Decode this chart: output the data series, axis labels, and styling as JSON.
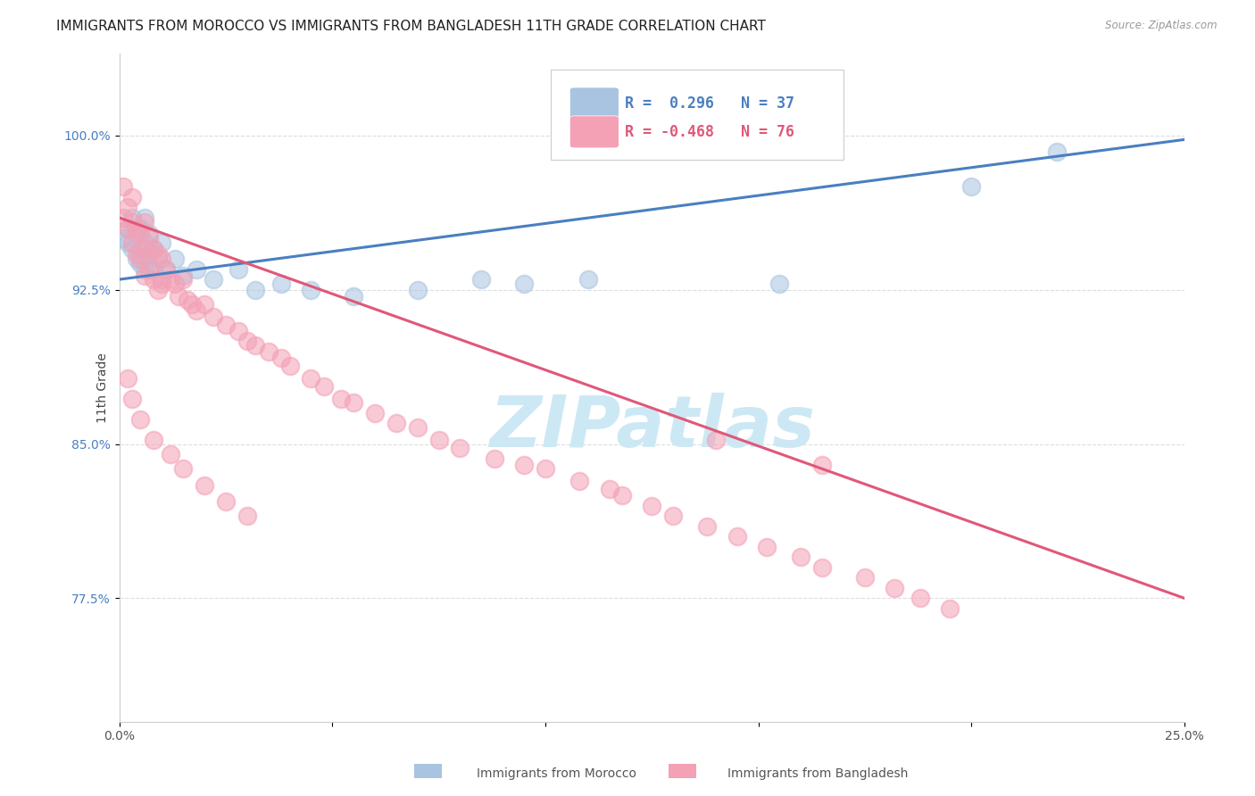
{
  "title": "IMMIGRANTS FROM MOROCCO VS IMMIGRANTS FROM BANGLADESH 11TH GRADE CORRELATION CHART",
  "source": "Source: ZipAtlas.com",
  "ylabel": "11th Grade",
  "ytick_labels": [
    "77.5%",
    "85.0%",
    "92.5%",
    "100.0%"
  ],
  "ytick_values": [
    0.775,
    0.85,
    0.925,
    1.0
  ],
  "xlim": [
    0.0,
    0.25
  ],
  "ylim": [
    0.715,
    1.04
  ],
  "legend_r1": "R =  0.296   N = 37",
  "legend_r2": "R = -0.468   N = 76",
  "morocco_color": "#a8c4e0",
  "bangladesh_color": "#f4a0b5",
  "morocco_line_color": "#4a7fc1",
  "bangladesh_line_color": "#e05878",
  "background_color": "#ffffff",
  "grid_color": "#dddddd",
  "watermark_text": "ZIPatlas",
  "watermark_color": "#cde8f5",
  "morocco_x": [
    0.001,
    0.002,
    0.002,
    0.003,
    0.003,
    0.004,
    0.004,
    0.005,
    0.005,
    0.005,
    0.006,
    0.006,
    0.006,
    0.007,
    0.007,
    0.008,
    0.008,
    0.009,
    0.01,
    0.01,
    0.011,
    0.013,
    0.015,
    0.018,
    0.022,
    0.028,
    0.032,
    0.038,
    0.045,
    0.055,
    0.07,
    0.085,
    0.095,
    0.11,
    0.155,
    0.2,
    0.22
  ],
  "morocco_y": [
    0.95,
    0.955,
    0.948,
    0.96,
    0.945,
    0.952,
    0.94,
    0.955,
    0.945,
    0.938,
    0.96,
    0.948,
    0.935,
    0.952,
    0.942,
    0.945,
    0.935,
    0.94,
    0.948,
    0.93,
    0.935,
    0.94,
    0.932,
    0.935,
    0.93,
    0.935,
    0.925,
    0.928,
    0.925,
    0.922,
    0.925,
    0.93,
    0.928,
    0.93,
    0.928,
    0.975,
    0.992
  ],
  "bangladesh_x": [
    0.001,
    0.001,
    0.002,
    0.002,
    0.003,
    0.003,
    0.003,
    0.004,
    0.004,
    0.005,
    0.005,
    0.006,
    0.006,
    0.006,
    0.007,
    0.007,
    0.008,
    0.008,
    0.009,
    0.009,
    0.01,
    0.01,
    0.011,
    0.012,
    0.013,
    0.014,
    0.015,
    0.016,
    0.017,
    0.018,
    0.02,
    0.022,
    0.025,
    0.028,
    0.03,
    0.032,
    0.035,
    0.038,
    0.04,
    0.045,
    0.048,
    0.052,
    0.055,
    0.06,
    0.065,
    0.07,
    0.075,
    0.08,
    0.088,
    0.095,
    0.1,
    0.108,
    0.115,
    0.118,
    0.125,
    0.13,
    0.138,
    0.145,
    0.152,
    0.16,
    0.165,
    0.175,
    0.182,
    0.188,
    0.195,
    0.002,
    0.003,
    0.005,
    0.008,
    0.012,
    0.015,
    0.02,
    0.025,
    0.03,
    0.14,
    0.165
  ],
  "bangladesh_y": [
    0.96,
    0.975,
    0.965,
    0.955,
    0.97,
    0.958,
    0.948,
    0.955,
    0.942,
    0.952,
    0.94,
    0.958,
    0.945,
    0.932,
    0.95,
    0.935,
    0.945,
    0.93,
    0.942,
    0.925,
    0.94,
    0.928,
    0.935,
    0.93,
    0.928,
    0.922,
    0.93,
    0.92,
    0.918,
    0.915,
    0.918,
    0.912,
    0.908,
    0.905,
    0.9,
    0.898,
    0.895,
    0.892,
    0.888,
    0.882,
    0.878,
    0.872,
    0.87,
    0.865,
    0.86,
    0.858,
    0.852,
    0.848,
    0.843,
    0.84,
    0.838,
    0.832,
    0.828,
    0.825,
    0.82,
    0.815,
    0.81,
    0.805,
    0.8,
    0.795,
    0.79,
    0.785,
    0.78,
    0.775,
    0.77,
    0.882,
    0.872,
    0.862,
    0.852,
    0.845,
    0.838,
    0.83,
    0.822,
    0.815,
    0.852,
    0.84
  ],
  "morocco_line_x": [
    0.0,
    0.25
  ],
  "morocco_line_y": [
    0.93,
    0.998
  ],
  "bangladesh_line_x": [
    0.0,
    0.25
  ],
  "bangladesh_line_y": [
    0.96,
    0.775
  ]
}
